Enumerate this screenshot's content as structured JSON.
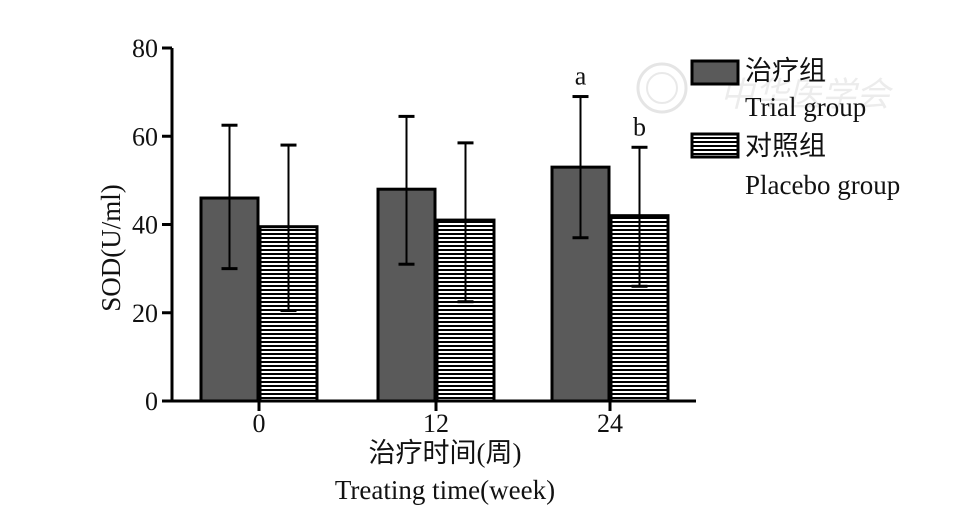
{
  "chart_data": {
    "type": "bar",
    "categories": [
      "0",
      "12",
      "24"
    ],
    "series": [
      {
        "name": "Trial group",
        "name_cn": "治疗组",
        "fill": "solid-dark",
        "values": [
          46,
          48,
          53
        ],
        "error_upper": [
          62.5,
          64.5,
          69
        ],
        "error_lower": [
          30,
          31,
          37
        ]
      },
      {
        "name": "Placebo group",
        "name_cn": "对照组",
        "fill": "horizontal-stripes",
        "values": [
          39.5,
          41,
          42
        ],
        "error_upper": [
          58,
          58.5,
          57.5
        ],
        "error_lower": [
          20.5,
          22.5,
          26
        ]
      }
    ],
    "ylim": [
      0,
      80
    ],
    "yticks": [
      0,
      20,
      40,
      60,
      80
    ],
    "ylabel": "SOD(U/ml)",
    "xlabel_cn": "治疗时间(周)",
    "xlabel_en": "Treating time(week)",
    "annotations": [
      {
        "category": "24",
        "series": "Trial group",
        "text": "a"
      },
      {
        "category": "24",
        "series": "Placebo group",
        "text": "b"
      }
    ],
    "legend": {
      "position": "top-right",
      "entries": [
        {
          "cn": "治疗组",
          "en": "Trial group"
        },
        {
          "cn": "对照组",
          "en": "Placebo group"
        }
      ]
    },
    "grid": false
  },
  "colors": {
    "bar_dark": "#5a5a5a",
    "stroke": "#000000",
    "stripe_bg": "#ffffff",
    "watermark": "#d8d8d8"
  },
  "watermark": {
    "text": "中华医学会"
  }
}
